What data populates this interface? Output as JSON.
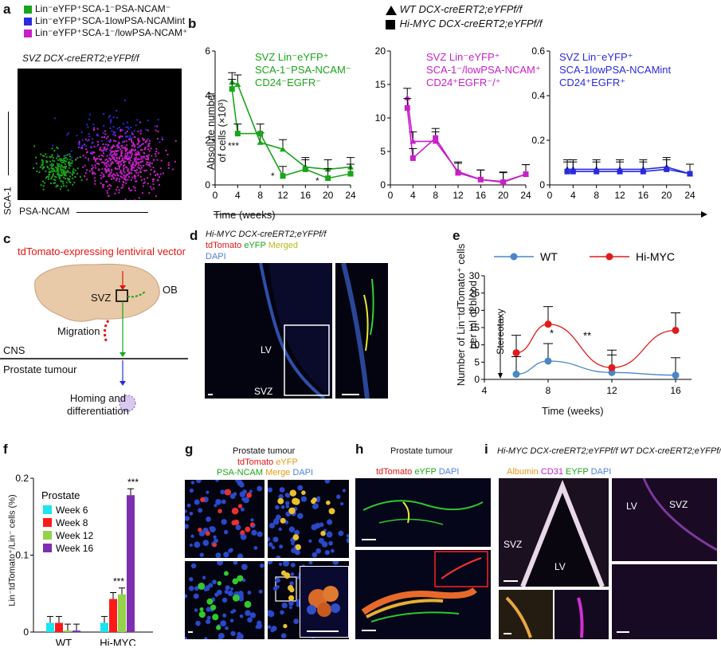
{
  "panel_labels": {
    "a": "a",
    "b": "b",
    "c": "c",
    "d": "d",
    "e": "e",
    "f": "f",
    "g": "g",
    "h": "h",
    "i": "i"
  },
  "colors": {
    "green": "#1aa51a",
    "magenta": "#c81fc8",
    "blue": "#2a2ae0",
    "red": "#e41414",
    "wt_blue": "#4a86c8",
    "hi_red": "#e01b1b",
    "cyan": "#19e5f0",
    "bar_red": "#ff1a1a",
    "bar_lime": "#95d14a",
    "bar_purple": "#7e2fb0"
  },
  "panel_a": {
    "legend": [
      "Lin⁻eYFP⁺SCA-1⁻PSA-NCAM⁻",
      "Lin⁻eYFP⁺SCA-1lowPSA-NCAMint",
      "Lin⁻eYFP⁺SCA-1⁻/lowPSA-NCAM⁺"
    ],
    "title": "SVZ DCX-creERT2;eYFPf/f",
    "y_axis": "SCA-1",
    "x_axis": "PSA-NCAM"
  },
  "panel_b": {
    "legend_wt": "WT DCX-creERT2;eYFPf/f",
    "legend_hi": "Hi-MYC DCX-creERT2;eYFPf/f",
    "y_label_1": "Absolute number",
    "y_label_2": "of cells (×10³)",
    "x_label": "Time (weeks)",
    "sub1_title": [
      "SVZ Lin⁻eYFP⁺",
      "SCA-1⁻PSA-NCAM⁻",
      "CD24⁻EGFR⁻"
    ],
    "sub2_title": [
      "SVZ Lin⁻eYFP⁺",
      "SCA-1⁻/lowPSA-NCAM⁺",
      "CD24⁺EGFR⁻/⁺"
    ],
    "sub3_title": [
      "SVZ Lin⁻eYFP⁺",
      "SCA-1lowPSA-NCAMint",
      "CD24⁺EGFR⁺"
    ],
    "sig1": "***",
    "sig2": "*",
    "sig3": "*"
  },
  "chart_data": [
    {
      "type": "line",
      "panel": "b1",
      "x": [
        3,
        4,
        8,
        12,
        16,
        20,
        24
      ],
      "xlim": [
        0,
        24
      ],
      "ylim": [
        0,
        6
      ],
      "xticks": [
        "0",
        "4",
        "8",
        "12",
        "16",
        "20",
        "24"
      ],
      "yticks": [
        "0",
        "2",
        "4",
        "6"
      ],
      "series": [
        {
          "name": "WT",
          "values": [
            4.6,
            4.5,
            1.9,
            1.6,
            0.8,
            0.7,
            0.8
          ]
        },
        {
          "name": "Hi-MYC",
          "values": [
            4.3,
            2.3,
            2.3,
            0.4,
            0.7,
            0.3,
            0.5
          ]
        }
      ]
    },
    {
      "type": "line",
      "panel": "b2",
      "x": [
        3,
        4,
        8,
        12,
        16,
        20,
        24
      ],
      "xlim": [
        0,
        24
      ],
      "ylim": [
        0,
        20
      ],
      "xticks": [
        "0",
        "4",
        "8",
        "12",
        "16",
        "20",
        "24"
      ],
      "yticks": [
        "0",
        "5",
        "10",
        "15",
        "20"
      ],
      "series": [
        {
          "name": "WT",
          "values": [
            13,
            6.5,
            6.5,
            2,
            0.8,
            0.5,
            1.6
          ]
        },
        {
          "name": "Hi-MYC",
          "values": [
            11.5,
            4,
            7,
            1.8,
            0.8,
            0.4,
            1.6
          ]
        }
      ]
    },
    {
      "type": "line",
      "panel": "b3",
      "x": [
        3,
        4,
        8,
        12,
        16,
        20,
        24
      ],
      "xlim": [
        0,
        24
      ],
      "ylim": [
        0,
        0.6
      ],
      "xticks": [
        "0",
        "4",
        "8",
        "12",
        "16",
        "20",
        "24"
      ],
      "yticks": [
        "0",
        "0.2",
        "0.4",
        "0.6"
      ],
      "series": [
        {
          "name": "WT",
          "values": [
            0.07,
            0.07,
            0.07,
            0.07,
            0.07,
            0.08,
            0.05
          ]
        },
        {
          "name": "Hi-MYC",
          "values": [
            0.06,
            0.06,
            0.06,
            0.06,
            0.06,
            0.07,
            0.05
          ]
        }
      ]
    },
    {
      "type": "line",
      "panel": "e",
      "x": [
        6,
        8,
        12,
        16
      ],
      "xlim": [
        4,
        17
      ],
      "ylim": [
        0,
        30
      ],
      "xticks": [
        "4",
        "8",
        "12",
        "16"
      ],
      "yticks": [
        "0",
        "5",
        "10",
        "15",
        "20",
        "25",
        "30"
      ],
      "ylabel": "Number of Lin⁻tdTomato⁺ cells per ml of blood",
      "xlabel": "Time (weeks)",
      "series": [
        {
          "name": "WT",
          "values": [
            1.5,
            5.3,
            2,
            1.2
          ]
        },
        {
          "name": "Hi-MYC",
          "values": [
            7.7,
            16,
            3.4,
            14.2
          ]
        }
      ],
      "annotations": [
        "Stereotaxy",
        "*",
        "**"
      ]
    },
    {
      "type": "bar",
      "panel": "f",
      "categories": [
        "WT",
        "Hi-MYC"
      ],
      "ylim": [
        0,
        0.2
      ],
      "yticks": [
        "0",
        "0.1",
        "0.2"
      ],
      "ylabel": "Lin⁻tdTomato⁺/Lin⁻ cells (%)",
      "legend_title": "Prostate",
      "series": [
        {
          "name": "Week 6",
          "values": [
            0.012,
            0.012
          ]
        },
        {
          "name": "Week 8",
          "values": [
            0.012,
            0.043
          ]
        },
        {
          "name": "Week 12",
          "values": [
            0.002,
            0.049
          ]
        },
        {
          "name": "Week 16",
          "values": [
            0.002,
            0.178
          ]
        }
      ],
      "annotations": [
        "***",
        "***"
      ]
    }
  ],
  "panel_c": {
    "vector": "tdTomato-expressing lentiviral vector",
    "svz": "SVZ",
    "ob": "OB",
    "migration": "Migration",
    "cns": "CNS",
    "prostate": "Prostate tumour",
    "homing": [
      "Homing and",
      "differentiation"
    ]
  },
  "panel_d": {
    "title": "Hi-MYC DCX-creERT2;eYFPf/f",
    "tdtomato": "tdTomato",
    "eyfp": "eYFP",
    "merged": "Merged",
    "dapi": "DAPI",
    "lv": "LV",
    "svz": "SVZ"
  },
  "panel_g": {
    "title": "Prostate tumour",
    "tdtomato": "tdTomato",
    "eyfp": "eYFP",
    "psa": "PSA-NCAM",
    "merge": "Merge",
    "dapi": "DAPI"
  },
  "panel_h": {
    "title": "Prostate tumour",
    "tdtomato": "tdTomato",
    "eyfp": "eYFP",
    "dapi": "DAPI"
  },
  "panel_i": {
    "title": "Hi-MYC DCX-creERT2;eYFPf/f WT DCX-creERT2;eYFPf/f",
    "albumin": "Albumin",
    "cd31": "CD31",
    "eyfp": "EYFP",
    "dapi": "DAPI",
    "svz": "SVZ",
    "lv": "LV",
    "lv2": "LV",
    "svz2": "SVZ"
  }
}
